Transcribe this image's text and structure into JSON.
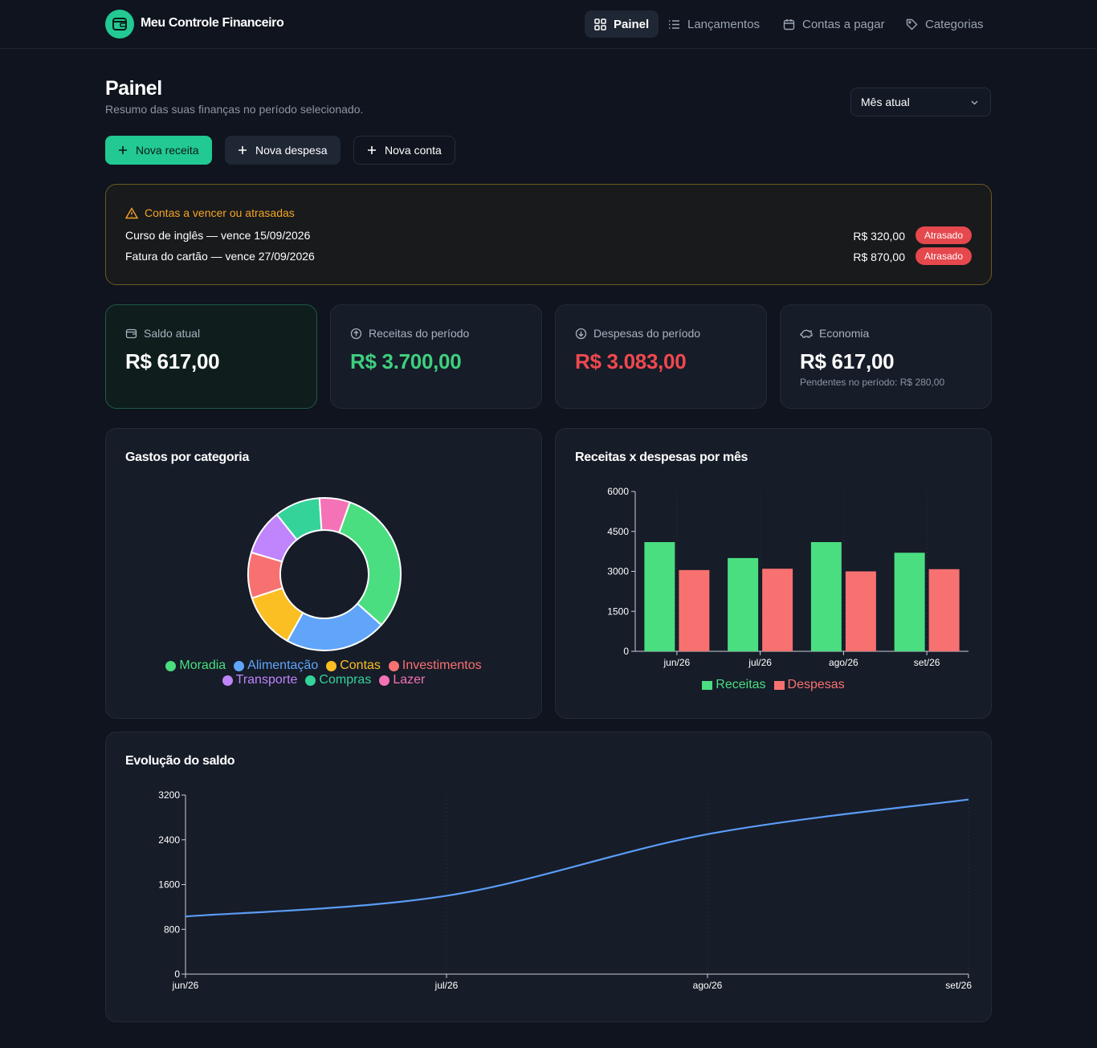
{
  "app": {
    "name": "Meu Controle Financeiro"
  },
  "nav": [
    {
      "label": "Painel",
      "icon": "grid-icon",
      "active": true
    },
    {
      "label": "Lançamentos",
      "icon": "list-icon",
      "active": false
    },
    {
      "label": "Contas a pagar",
      "icon": "calendar-icon",
      "active": false
    },
    {
      "label": "Categorias",
      "icon": "tag-icon",
      "active": false
    }
  ],
  "page": {
    "title": "Painel",
    "subtitle": "Resumo das suas finanças no período selecionado.",
    "period_select": "Mês atual"
  },
  "actions": {
    "new_income": "Nova receita",
    "new_expense": "Nova despesa",
    "new_account": "Nova conta"
  },
  "alert": {
    "title": "Contas a vencer ou atrasadas",
    "items": [
      {
        "text": "Curso de inglês — vence 15/09/2026",
        "amount": "R$ 320,00",
        "status": "Atrasado"
      },
      {
        "text": "Fatura do cartão — vence 27/09/2026",
        "amount": "R$ 870,00",
        "status": "Atrasado"
      }
    ]
  },
  "cards": {
    "saldo": {
      "label": "Saldo atual",
      "value": "R$ 617,00"
    },
    "receitas": {
      "label": "Receitas do período",
      "value": "R$ 3.700,00",
      "color": "#3fcf7e"
    },
    "despesas": {
      "label": "Despesas do período",
      "value": "R$ 3.083,00",
      "color": "#f0494f"
    },
    "economia": {
      "label": "Economia",
      "value": "R$ 617,00",
      "note": "Pendentes no período: R$ 280,00"
    }
  },
  "colors": {
    "accent": "#22c993",
    "warning": "#f5a524",
    "danger": "#e5484d",
    "line": "#5b9cf5"
  },
  "chart_data": [
    {
      "type": "pie",
      "donut": true,
      "title": "Gastos por categoria",
      "legend_position": "bottom",
      "slices": [
        {
          "label": "Moradia",
          "value": 29,
          "color": "#4ade80"
        },
        {
          "label": "Alimentação",
          "value": 20,
          "color": "#60a5fa"
        },
        {
          "label": "Contas",
          "value": 11,
          "color": "#fbbf24"
        },
        {
          "label": "Investimentos",
          "value": 9,
          "color": "#f87171"
        },
        {
          "label": "Transporte",
          "value": 9,
          "color": "#c084fc"
        },
        {
          "label": "Compras",
          "value": 9,
          "color": "#34d399"
        },
        {
          "label": "Lazer",
          "value": 6,
          "color": "#f472b6"
        }
      ]
    },
    {
      "type": "bar",
      "title": "Receitas x despesas por mês",
      "categories": [
        "jun/26",
        "jul/26",
        "ago/26",
        "set/26"
      ],
      "series": [
        {
          "name": "Receitas",
          "values": [
            4100,
            3500,
            4100,
            3700
          ],
          "color": "#4ade80"
        },
        {
          "name": "Despesas",
          "values": [
            3050,
            3100,
            3000,
            3083
          ],
          "color": "#f87171"
        }
      ],
      "yticks": [
        0,
        1500,
        3000,
        4500,
        6000
      ],
      "ylim": [
        0,
        6000
      ],
      "legend_position": "bottom"
    },
    {
      "type": "line",
      "title": "Evolução do saldo",
      "x": [
        "jun/26",
        "jul/26",
        "ago/26",
        "set/26"
      ],
      "series": [
        {
          "values": [
            1030,
            1400,
            2500,
            3120
          ],
          "color": "#5b9cf5"
        }
      ],
      "yticks": [
        0,
        800,
        1600,
        2400,
        3200
      ],
      "ylim": [
        0,
        3200
      ]
    }
  ]
}
